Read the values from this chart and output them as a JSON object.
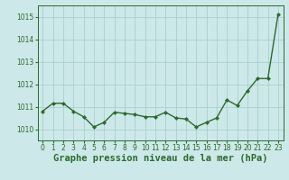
{
  "x": [
    0,
    1,
    2,
    3,
    4,
    5,
    6,
    7,
    8,
    9,
    10,
    11,
    12,
    13,
    14,
    15,
    16,
    17,
    18,
    19,
    20,
    21,
    22,
    23
  ],
  "y": [
    1010.8,
    1011.15,
    1011.15,
    1010.8,
    1010.55,
    1010.1,
    1010.3,
    1010.75,
    1010.7,
    1010.65,
    1010.55,
    1010.55,
    1010.75,
    1010.5,
    1010.45,
    1010.1,
    1010.3,
    1010.5,
    1011.3,
    1011.05,
    1011.7,
    1012.25,
    1012.25,
    1015.1
  ],
  "ylim": [
    1009.5,
    1015.5
  ],
  "yticks": [
    1010,
    1011,
    1012,
    1013,
    1014,
    1015
  ],
  "xticks": [
    0,
    1,
    2,
    3,
    4,
    5,
    6,
    7,
    8,
    9,
    10,
    11,
    12,
    13,
    14,
    15,
    16,
    17,
    18,
    19,
    20,
    21,
    22,
    23
  ],
  "xlabel": "Graphe pression niveau de la mer (hPa)",
  "line_color": "#2d6a2d",
  "marker": "D",
  "marker_size": 2.0,
  "bg_color": "#cce8e8",
  "grid_color": "#aacece",
  "tick_color": "#2d6a2d",
  "label_color": "#2d6a2d",
  "line_width": 1.0,
  "tick_label_fontsize": 5.5,
  "xlabel_fontsize": 7.5
}
